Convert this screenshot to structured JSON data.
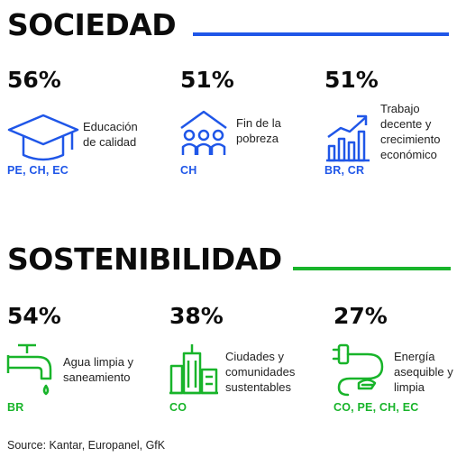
{
  "sections": [
    {
      "title": "SOCIEDAD",
      "accent": "#1f56e8",
      "items": [
        {
          "value": "56%",
          "label_lines": [
            "Educación",
            "de calidad"
          ],
          "codes": "PE, CH, EC",
          "icon": "graduation-cap-icon"
        },
        {
          "value": "51%",
          "label_lines": [
            "Fin de la",
            "pobreza"
          ],
          "codes": "CH",
          "icon": "people-house-icon"
        },
        {
          "value": "51%",
          "label_lines": [
            "Trabajo",
            "decente y",
            "crecimiento",
            "económico"
          ],
          "codes": "BR, CR",
          "icon": "growth-chart-icon"
        }
      ]
    },
    {
      "title": "SOSTENIBILIDAD",
      "accent": "#18b42a",
      "items": [
        {
          "value": "54%",
          "label_lines": [
            "Agua limpia y",
            "saneamiento"
          ],
          "codes": "BR",
          "icon": "water-tap-icon"
        },
        {
          "value": "38%",
          "label_lines": [
            "Ciudades y",
            "comunidades",
            "sustentables"
          ],
          "codes": "CO",
          "icon": "city-buildings-icon"
        },
        {
          "value": "27%",
          "label_lines": [
            "Energía",
            "asequible y",
            "limpia"
          ],
          "codes": "CO, PE, CH, EC",
          "icon": "energy-plug-icon"
        }
      ]
    }
  ],
  "source": "Source: Kantar, Europanel, GfK"
}
